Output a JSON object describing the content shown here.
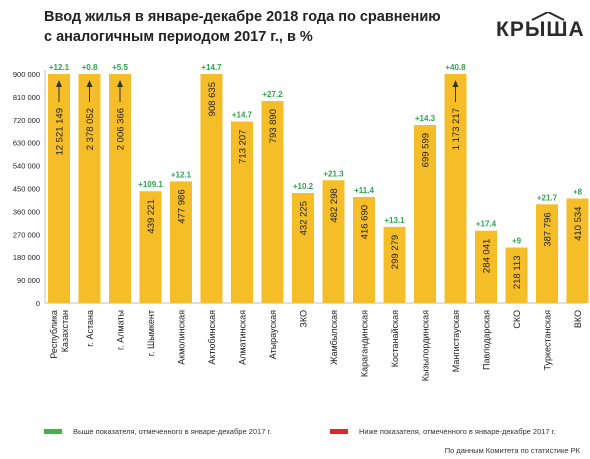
{
  "title_line1": "Ввод жилья в январе-декабре 2018 года по сравнению",
  "title_line2": "с аналогичным периодом 2017 г., в %",
  "logo_text": "КРЫША",
  "legend": {
    "above": "Выше показателя, отмеченного в январе-декабре 2017 г.",
    "below": "Ниже показателя, отмеченного в январе-декабре 2017 г.",
    "above_color": "#3db54a",
    "below_color": "#e0262b"
  },
  "source": "По данным Комитета по статистике РК",
  "colors": {
    "bar": "#f5bd28",
    "change_positive": "#2ea44f",
    "text": "#222222",
    "grid": "#d9d9d9"
  },
  "chart_data": {
    "type": "bar",
    "categories": [
      "Республика Казахстан",
      "г. Астана",
      "г. Алматы",
      "г. Шымкент",
      "Акмолинская",
      "Актюбинская",
      "Алматинская",
      "Атырауская",
      "ЗКО",
      "Жамбылская",
      "Карагандинская",
      "Костанайская",
      "Кызылординская",
      "Мангистауская",
      "Павлодарская",
      "СКО",
      "Туркестанская",
      "ВКО"
    ],
    "category_lines": [
      [
        "Республика",
        "Казахстан"
      ],
      [
        "г. Астана"
      ],
      [
        "г. Алматы"
      ],
      [
        "г. Шымкент"
      ],
      [
        "Акмолинская"
      ],
      [
        "Актюбинская"
      ],
      [
        "Алматинская"
      ],
      [
        "Атырауская"
      ],
      [
        "ЗКО"
      ],
      [
        "Жамбылская"
      ],
      [
        "Карагандинская"
      ],
      [
        "Костанайская"
      ],
      [
        "Кызылординская"
      ],
      [
        "Мангистауская"
      ],
      [
        "Павлодарская"
      ],
      [
        "СКО"
      ],
      [
        "Туркестанская"
      ],
      [
        "ВКО"
      ]
    ],
    "values": [
      12521149,
      2378052,
      2006366,
      439221,
      477986,
      908635,
      713207,
      793890,
      432225,
      482298,
      416690,
      299279,
      699599,
      1173217,
      284041,
      218113,
      387796,
      410534
    ],
    "value_labels": [
      "12 521 149",
      "2 378 052",
      "2 006 366",
      "439 221",
      "477 986",
      "908 635",
      "713 207",
      "793 890",
      "432 225",
      "482 298",
      "416 690",
      "299 279",
      "699 599",
      "1 173 217",
      "284 041",
      "218 113",
      "387 796",
      "410 534"
    ],
    "changes": [
      "+12.1",
      "+0.8",
      "+5.5",
      "+109.1",
      "+12.1",
      "+14.7",
      "+14.7",
      "+27.2",
      "+10.2",
      "+21.3",
      "+11.4",
      "+13.1",
      "+14.3",
      "+40.8",
      "+17.4",
      "+9",
      "+21.7",
      "+8"
    ],
    "ylim": [
      0,
      900000
    ],
    "ytick_values": [
      0,
      90000,
      180000,
      270000,
      360000,
      450000,
      540000,
      630000,
      720000,
      810000,
      900000
    ],
    "ytick_labels": [
      "0",
      "90 000",
      "180 000",
      "270 000",
      "360 000",
      "450 000",
      "540 000",
      "630 000",
      "720 000",
      "810 000",
      "900 000"
    ],
    "truncated_arrow": [
      true,
      true,
      true,
      false,
      false,
      false,
      false,
      false,
      false,
      false,
      false,
      false,
      false,
      true,
      false,
      false,
      false,
      false
    ],
    "grid": false,
    "xlabel": "",
    "ylabel": ""
  }
}
